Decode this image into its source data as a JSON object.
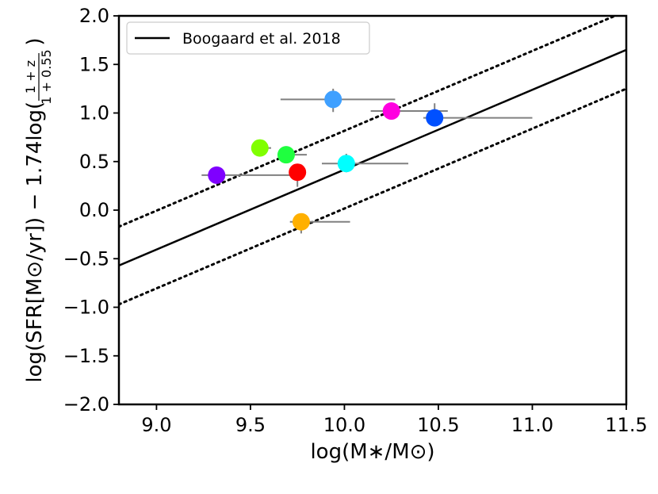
{
  "chart_data": {
    "type": "scatter",
    "xlabel": "log(M∗/M⊙)",
    "ylabel": {
      "prefix": "log(SFR[M⊙/yr]) − 1.74log(",
      "numerator": "1 + z",
      "denominator": "1 + 0.55",
      "suffix": ")"
    },
    "xlim": [
      8.8,
      11.5
    ],
    "ylim": [
      -2.0,
      2.0
    ],
    "xticks": [
      9.0,
      9.5,
      10.0,
      10.5,
      11.0,
      11.5
    ],
    "xtick_labels": [
      "9.0",
      "9.5",
      "10.0",
      "10.5",
      "11.0",
      "11.5"
    ],
    "yticks": [
      -2.0,
      -1.5,
      -1.0,
      -0.5,
      0.0,
      0.5,
      1.0,
      1.5,
      2.0
    ],
    "ytick_labels": [
      "−2.0",
      "−1.5",
      "−1.0",
      "−0.5",
      "0.0",
      "0.5",
      "1.0",
      "1.5",
      "2.0"
    ],
    "grid": false,
    "legend_position": "top-left",
    "lines": [
      {
        "name": "Boogaard et al. 2018",
        "style": "solid",
        "x": [
          8.8,
          11.5
        ],
        "y": [
          -0.57,
          1.65
        ],
        "color": "#000000"
      },
      {
        "name": "",
        "style": "dotted",
        "x": [
          8.8,
          11.5
        ],
        "y": [
          -0.17,
          2.05
        ],
        "color": "#000000"
      },
      {
        "name": "",
        "style": "dotted",
        "x": [
          8.8,
          11.5
        ],
        "y": [
          -0.97,
          1.25
        ],
        "color": "#000000"
      }
    ],
    "points": [
      {
        "x": 9.32,
        "y": 0.36,
        "xerr": [
          0.08,
          0.43
        ],
        "yerr": [
          0.04,
          0.04
        ],
        "color": "#7f00ff"
      },
      {
        "x": 9.55,
        "y": 0.64,
        "xerr": [
          0.04,
          0.06
        ],
        "yerr": [
          0.08,
          0.03
        ],
        "color": "#80ff00"
      },
      {
        "x": 9.69,
        "y": 0.57,
        "xerr": [
          0.02,
          0.11
        ],
        "yerr": [
          0.05,
          0.05
        ],
        "color": "#1fff3f"
      },
      {
        "x": 9.75,
        "y": 0.39,
        "xerr": [
          0.02,
          0.02
        ],
        "yerr": [
          0.15,
          0.05
        ],
        "color": "#ff0000"
      },
      {
        "x": 9.77,
        "y": -0.12,
        "xerr": [
          0.06,
          0.26
        ],
        "yerr": [
          0.12,
          0.05
        ],
        "color": "#ffb000"
      },
      {
        "x": 9.94,
        "y": 1.14,
        "xerr": [
          0.28,
          0.33
        ],
        "yerr": [
          0.13,
          0.11
        ],
        "color": "#3fa0ff"
      },
      {
        "x": 10.01,
        "y": 0.48,
        "xerr": [
          0.13,
          0.33
        ],
        "yerr": [
          0.09,
          0.1
        ],
        "color": "#00ffff"
      },
      {
        "x": 10.25,
        "y": 1.02,
        "xerr": [
          0.11,
          0.3
        ],
        "yerr": [
          0.06,
          0.06
        ],
        "color": "#ff00e0"
      },
      {
        "x": 10.48,
        "y": 0.95,
        "xerr": [
          0.06,
          0.52
        ],
        "yerr": [
          0.06,
          0.15
        ],
        "color": "#0050ff"
      }
    ],
    "errorbar_color": "#808080",
    "legend": [
      {
        "label": "Boogaard et al. 2018",
        "style": "solid"
      }
    ]
  }
}
